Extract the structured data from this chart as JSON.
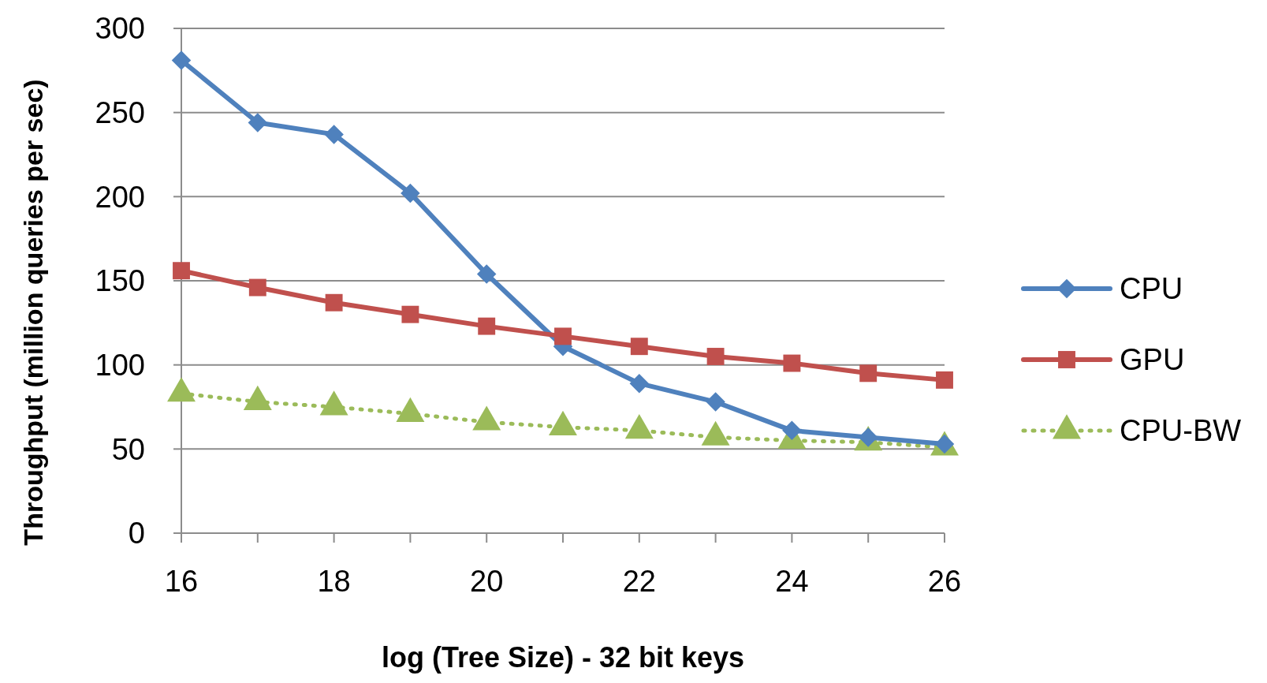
{
  "chart_data": {
    "type": "line",
    "xlabel": "log (Tree Size) - 32 bit keys",
    "ylabel": "Throughput (million queries per sec)",
    "x": [
      16,
      17,
      18,
      19,
      20,
      21,
      22,
      23,
      24,
      25,
      26
    ],
    "xlim": [
      16,
      26
    ],
    "xticks": [
      16,
      {
        "value": 17,
        "label": null
      },
      18,
      {
        "value": 19,
        "label": null
      },
      20,
      {
        "value": 21,
        "label": null
      },
      22,
      {
        "value": 23,
        "label": null
      },
      24,
      {
        "value": 25,
        "label": null
      },
      26
    ],
    "ylim": [
      0,
      300
    ],
    "yticks": [
      0,
      50,
      100,
      150,
      200,
      250,
      300
    ],
    "grid": "y",
    "legend": "right",
    "series": [
      {
        "name": "CPU",
        "color": "#4f81bd",
        "marker": "diamond",
        "line_style": "solid",
        "values": [
          281,
          244,
          237,
          202,
          154,
          111,
          89,
          78,
          61,
          57,
          53
        ]
      },
      {
        "name": "GPU",
        "color": "#c0504d",
        "marker": "square",
        "line_style": "solid",
        "values": [
          156,
          146,
          137,
          130,
          123,
          117,
          111,
          105,
          101,
          95,
          91
        ]
      },
      {
        "name": "CPU-BW",
        "color": "#9bbb59",
        "marker": "triangle",
        "line_style": "dotted",
        "values": [
          83,
          78,
          75,
          71,
          66,
          63,
          61,
          57,
          55,
          54,
          51
        ]
      }
    ]
  }
}
